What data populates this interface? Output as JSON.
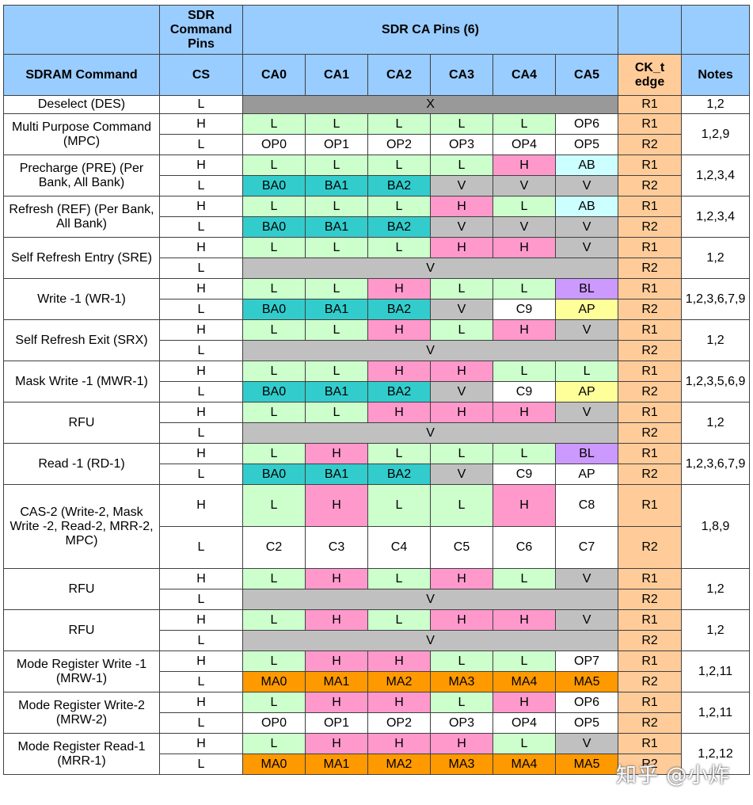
{
  "header": {
    "sdr_command_pins": "SDR Command Pins",
    "sdr_ca_pins": "SDR CA Pins (6)",
    "sdram_command": "SDRAM Command",
    "cs": "CS",
    "ca": [
      "CA0",
      "CA1",
      "CA2",
      "CA3",
      "CA4",
      "CA5"
    ],
    "ck_t_edge": "CK_t edge",
    "notes": "Notes"
  },
  "commands": [
    {
      "name": "Deselect (DES)",
      "notes": "1,2",
      "rows": [
        {
          "cs": "L",
          "span": "X",
          "edge": "R1"
        }
      ]
    },
    {
      "name": "Multi Purpose Command (MPC)",
      "notes": "1,2,9",
      "rows": [
        {
          "cs": "H",
          "cells": [
            [
              "L",
              "G"
            ],
            [
              "L",
              "G"
            ],
            [
              "L",
              "G"
            ],
            [
              "L",
              "G"
            ],
            [
              "L",
              "G"
            ],
            [
              "OP6",
              "W"
            ]
          ],
          "edge": "R1"
        },
        {
          "cs": "L",
          "cells": [
            [
              "OP0",
              "W"
            ],
            [
              "OP1",
              "W"
            ],
            [
              "OP2",
              "W"
            ],
            [
              "OP3",
              "W"
            ],
            [
              "OP4",
              "W"
            ],
            [
              "OP5",
              "W"
            ]
          ],
          "edge": "R2"
        }
      ]
    },
    {
      "name": "Precharge (PRE) (Per Bank, All Bank)",
      "notes": "1,2,3,4",
      "rows": [
        {
          "cs": "H",
          "cells": [
            [
              "L",
              "G"
            ],
            [
              "L",
              "G"
            ],
            [
              "L",
              "G"
            ],
            [
              "L",
              "G"
            ],
            [
              "H",
              "P"
            ],
            [
              "AB",
              "C"
            ]
          ],
          "edge": "R1"
        },
        {
          "cs": "L",
          "cells": [
            [
              "BA0",
              "T"
            ],
            [
              "BA1",
              "T"
            ],
            [
              "BA2",
              "T"
            ],
            [
              "V",
              "S"
            ],
            [
              "V",
              "S"
            ],
            [
              "V",
              "S"
            ]
          ],
          "edge": "R2"
        }
      ]
    },
    {
      "name": "Refresh (REF) (Per Bank, All Bank)",
      "notes": "1,2,3,4",
      "rows": [
        {
          "cs": "H",
          "cells": [
            [
              "L",
              "G"
            ],
            [
              "L",
              "G"
            ],
            [
              "L",
              "G"
            ],
            [
              "H",
              "P"
            ],
            [
              "L",
              "G"
            ],
            [
              "AB",
              "C"
            ]
          ],
          "edge": "R1"
        },
        {
          "cs": "L",
          "cells": [
            [
              "BA0",
              "T"
            ],
            [
              "BA1",
              "T"
            ],
            [
              "BA2",
              "T"
            ],
            [
              "V",
              "S"
            ],
            [
              "V",
              "S"
            ],
            [
              "V",
              "S"
            ]
          ],
          "edge": "R2"
        }
      ]
    },
    {
      "name": "Self Refresh Entry (SRE)",
      "notes": "1,2",
      "rows": [
        {
          "cs": "H",
          "cells": [
            [
              "L",
              "G"
            ],
            [
              "L",
              "G"
            ],
            [
              "L",
              "G"
            ],
            [
              "H",
              "P"
            ],
            [
              "H",
              "P"
            ],
            [
              "V",
              "S"
            ]
          ],
          "edge": "R1"
        },
        {
          "cs": "L",
          "span": "V",
          "edge": "R2"
        }
      ]
    },
    {
      "name": "Write -1 (WR-1)",
      "notes": "1,2,3,6,7,9",
      "rows": [
        {
          "cs": "H",
          "cells": [
            [
              "L",
              "G"
            ],
            [
              "L",
              "G"
            ],
            [
              "H",
              "P"
            ],
            [
              "L",
              "G"
            ],
            [
              "L",
              "G"
            ],
            [
              "BL",
              "U"
            ]
          ],
          "edge": "R1"
        },
        {
          "cs": "L",
          "cells": [
            [
              "BA0",
              "T"
            ],
            [
              "BA1",
              "T"
            ],
            [
              "BA2",
              "T"
            ],
            [
              "V",
              "S"
            ],
            [
              "C9",
              "W"
            ],
            [
              "AP",
              "Y"
            ]
          ],
          "edge": "R2"
        }
      ]
    },
    {
      "name": "Self Refresh Exit (SRX)",
      "notes": "1,2",
      "rows": [
        {
          "cs": "H",
          "cells": [
            [
              "L",
              "G"
            ],
            [
              "L",
              "G"
            ],
            [
              "H",
              "P"
            ],
            [
              "L",
              "G"
            ],
            [
              "H",
              "P"
            ],
            [
              "V",
              "S"
            ]
          ],
          "edge": "R1"
        },
        {
          "cs": "L",
          "span": "V",
          "edge": "R2"
        }
      ]
    },
    {
      "name": "Mask Write -1 (MWR-1)",
      "notes": "1,2,3,5,6,9",
      "rows": [
        {
          "cs": "H",
          "cells": [
            [
              "L",
              "G"
            ],
            [
              "L",
              "G"
            ],
            [
              "H",
              "P"
            ],
            [
              "H",
              "P"
            ],
            [
              "L",
              "G"
            ],
            [
              "L",
              "G"
            ]
          ],
          "edge": "R1"
        },
        {
          "cs": "L",
          "cells": [
            [
              "BA0",
              "T"
            ],
            [
              "BA1",
              "T"
            ],
            [
              "BA2",
              "T"
            ],
            [
              "V",
              "S"
            ],
            [
              "C9",
              "W"
            ],
            [
              "AP",
              "Y"
            ]
          ],
          "edge": "R2"
        }
      ]
    },
    {
      "name": "RFU",
      "notes": "1,2",
      "rows": [
        {
          "cs": "H",
          "cells": [
            [
              "L",
              "G"
            ],
            [
              "L",
              "G"
            ],
            [
              "H",
              "P"
            ],
            [
              "H",
              "P"
            ],
            [
              "H",
              "P"
            ],
            [
              "V",
              "S"
            ]
          ],
          "edge": "R1"
        },
        {
          "cs": "L",
          "span": "V",
          "edge": "R2"
        }
      ]
    },
    {
      "name": "Read -1 (RD-1)",
      "notes": "1,2,3,6,7,9",
      "rows": [
        {
          "cs": "H",
          "cells": [
            [
              "L",
              "G"
            ],
            [
              "H",
              "P"
            ],
            [
              "L",
              "G"
            ],
            [
              "L",
              "G"
            ],
            [
              "L",
              "G"
            ],
            [
              "BL",
              "U"
            ]
          ],
          "edge": "R1"
        },
        {
          "cs": "L",
          "cells": [
            [
              "BA0",
              "T"
            ],
            [
              "BA1",
              "T"
            ],
            [
              "BA2",
              "T"
            ],
            [
              "V",
              "S"
            ],
            [
              "C9",
              "W"
            ],
            [
              "AP",
              "W"
            ]
          ],
          "edge": "R2"
        }
      ]
    },
    {
      "name": "CAS-2 (Write-2, Mask Write -2, Read-2, MRR-2, MPC)",
      "notes": "1,8,9",
      "tall": true,
      "rows": [
        {
          "cs": "H",
          "cells": [
            [
              "L",
              "G"
            ],
            [
              "H",
              "P"
            ],
            [
              "L",
              "G"
            ],
            [
              "L",
              "G"
            ],
            [
              "H",
              "P"
            ],
            [
              "C8",
              "W"
            ]
          ],
          "edge": "R1"
        },
        {
          "cs": "L",
          "cells": [
            [
              "C2",
              "W"
            ],
            [
              "C3",
              "W"
            ],
            [
              "C4",
              "W"
            ],
            [
              "C5",
              "W"
            ],
            [
              "C6",
              "W"
            ],
            [
              "C7",
              "W"
            ]
          ],
          "edge": "R2"
        }
      ]
    },
    {
      "name": "RFU",
      "notes": "1,2",
      "rows": [
        {
          "cs": "H",
          "cells": [
            [
              "L",
              "G"
            ],
            [
              "H",
              "P"
            ],
            [
              "L",
              "G"
            ],
            [
              "H",
              "P"
            ],
            [
              "L",
              "G"
            ],
            [
              "V",
              "S"
            ]
          ],
          "edge": "R1"
        },
        {
          "cs": "L",
          "span": "V",
          "edge": "R2"
        }
      ]
    },
    {
      "name": "RFU",
      "notes": "1,2",
      "rows": [
        {
          "cs": "H",
          "cells": [
            [
              "L",
              "G"
            ],
            [
              "H",
              "P"
            ],
            [
              "L",
              "G"
            ],
            [
              "H",
              "P"
            ],
            [
              "H",
              "P"
            ],
            [
              "V",
              "S"
            ]
          ],
          "edge": "R1"
        },
        {
          "cs": "L",
          "span": "V",
          "edge": "R2"
        }
      ]
    },
    {
      "name": "Mode Register Write -1 (MRW-1)",
      "notes": "1,2,11",
      "rows": [
        {
          "cs": "H",
          "cells": [
            [
              "L",
              "G"
            ],
            [
              "H",
              "P"
            ],
            [
              "H",
              "P"
            ],
            [
              "L",
              "G"
            ],
            [
              "L",
              "G"
            ],
            [
              "OP7",
              "W"
            ]
          ],
          "edge": "R1"
        },
        {
          "cs": "L",
          "cells": [
            [
              "MA0",
              "O"
            ],
            [
              "MA1",
              "O"
            ],
            [
              "MA2",
              "O"
            ],
            [
              "MA3",
              "O"
            ],
            [
              "MA4",
              "O"
            ],
            [
              "MA5",
              "O"
            ]
          ],
          "edge": "R2"
        }
      ]
    },
    {
      "name": "Mode Register Write-2 (MRW-2)",
      "notes": "1,2,11",
      "rows": [
        {
          "cs": "H",
          "cells": [
            [
              "L",
              "G"
            ],
            [
              "H",
              "P"
            ],
            [
              "H",
              "P"
            ],
            [
              "L",
              "G"
            ],
            [
              "H",
              "P"
            ],
            [
              "OP6",
              "W"
            ]
          ],
          "edge": "R1"
        },
        {
          "cs": "L",
          "cells": [
            [
              "OP0",
              "W"
            ],
            [
              "OP1",
              "W"
            ],
            [
              "OP2",
              "W"
            ],
            [
              "OP3",
              "W"
            ],
            [
              "OP4",
              "W"
            ],
            [
              "OP5",
              "W"
            ]
          ],
          "edge": "R2"
        }
      ]
    },
    {
      "name": "Mode Register Read-1 (MRR-1)",
      "notes": "1,2,12",
      "rows": [
        {
          "cs": "H",
          "cells": [
            [
              "L",
              "G"
            ],
            [
              "H",
              "P"
            ],
            [
              "H",
              "P"
            ],
            [
              "H",
              "P"
            ],
            [
              "L",
              "G"
            ],
            [
              "V",
              "S"
            ]
          ],
          "edge": "R1"
        },
        {
          "cs": "L",
          "cells": [
            [
              "MA0",
              "O"
            ],
            [
              "MA1",
              "O"
            ],
            [
              "MA2",
              "O"
            ],
            [
              "MA3",
              "O"
            ],
            [
              "MA4",
              "O"
            ],
            [
              "MA5",
              "O"
            ]
          ],
          "edge": "R2"
        }
      ]
    }
  ],
  "watermark": "知乎 @小炸"
}
